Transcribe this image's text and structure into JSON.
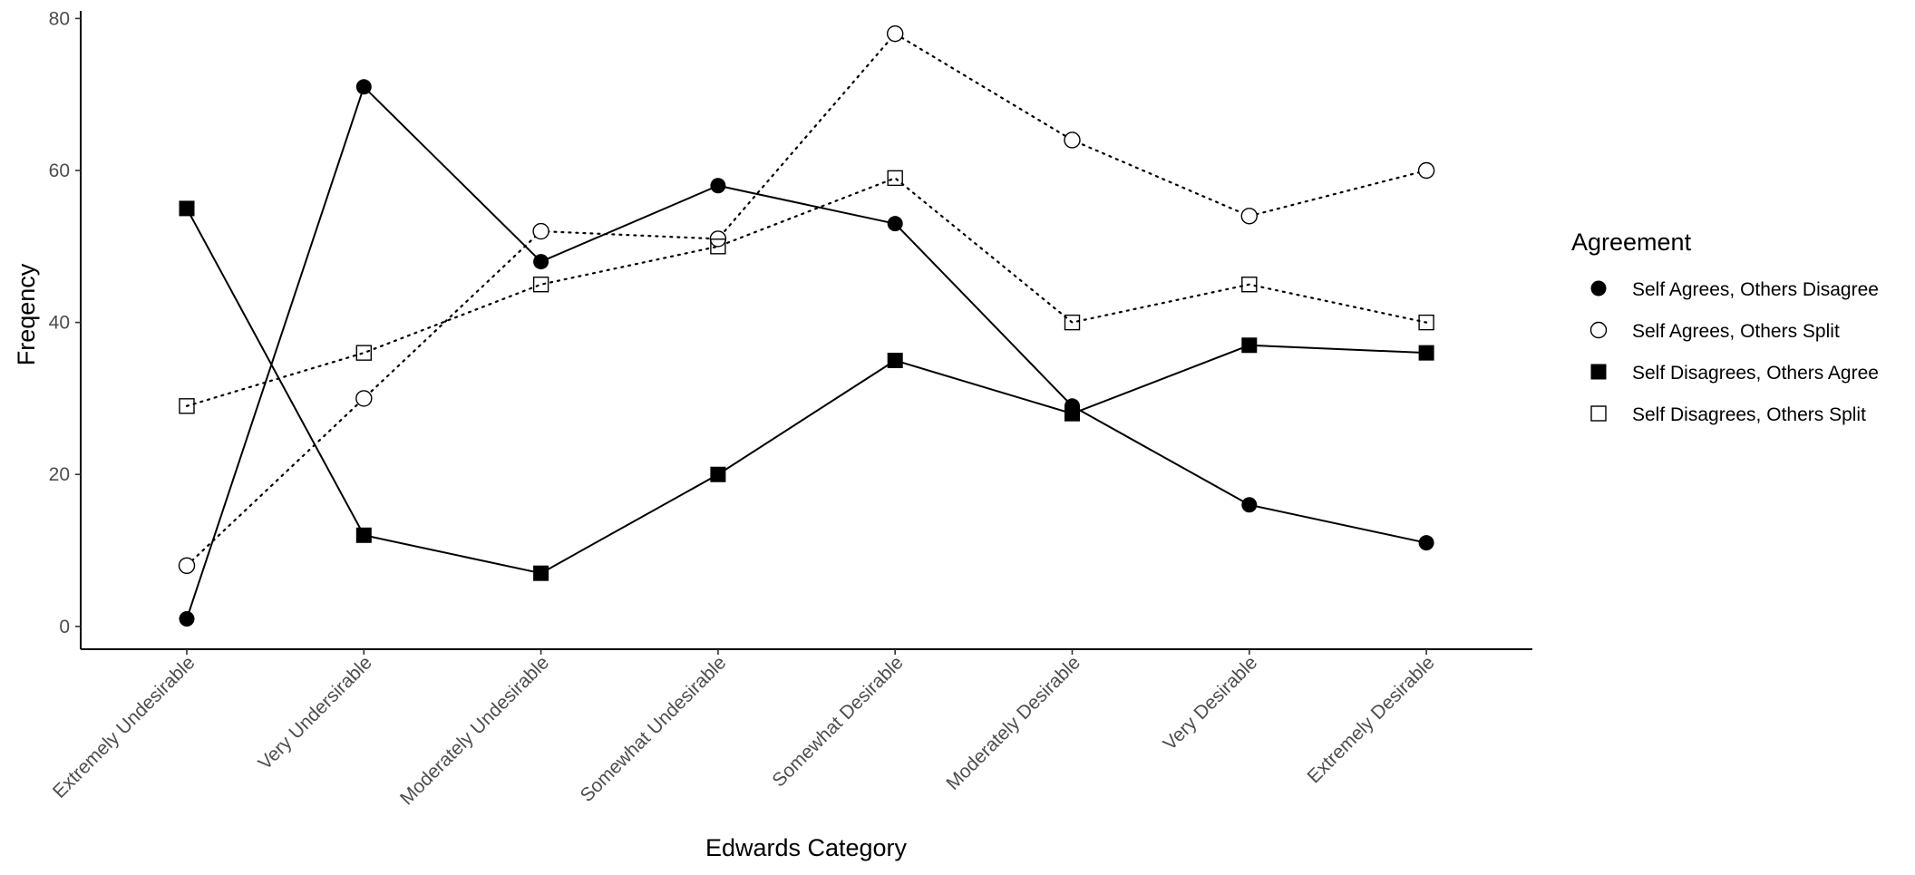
{
  "chart_data": {
    "type": "line",
    "xlabel": "Edwards Category",
    "ylabel": "Freqency",
    "categories": [
      "Extremely Undesirable",
      "Very Undersirable",
      "Moderately Undesirable",
      "Somewhat Undesirable",
      "Somewhat Desirable",
      "Moderately Desirable",
      "Very Desirable",
      "Extremely Desirable"
    ],
    "ylim": [
      -3,
      81
    ],
    "yticks": [
      0,
      20,
      40,
      60,
      80
    ],
    "grid": false,
    "legend": {
      "title": "Agreement",
      "position": "right"
    },
    "series": [
      {
        "name": "Self Agrees, Others Disagree",
        "values": [
          1,
          71,
          48,
          58,
          53,
          29,
          16,
          11
        ],
        "marker": "filled-circle",
        "line": "solid"
      },
      {
        "name": "Self Agrees, Others Split",
        "values": [
          8,
          30,
          52,
          51,
          78,
          64,
          54,
          60
        ],
        "marker": "open-circle",
        "line": "dotted"
      },
      {
        "name": "Self Disagrees, Others Agree",
        "values": [
          55,
          12,
          7,
          20,
          35,
          28,
          37,
          36
        ],
        "marker": "filled-square",
        "line": "solid"
      },
      {
        "name": "Self Disagrees, Others Split",
        "values": [
          29,
          36,
          45,
          50,
          59,
          40,
          45,
          40
        ],
        "marker": "open-square",
        "line": "dotted"
      }
    ],
    "colors": {
      "ink": "#000000",
      "tick_text": "#4d4d4d",
      "background": "#ffffff"
    }
  }
}
